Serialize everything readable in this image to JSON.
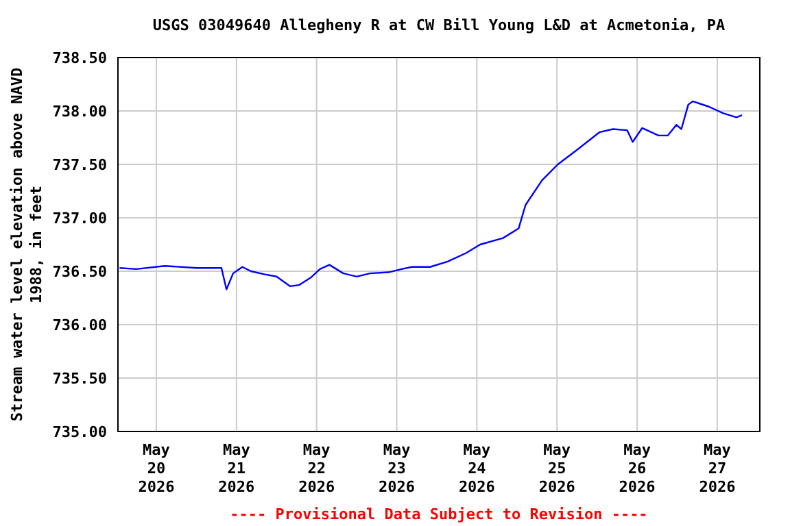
{
  "chart_data": {
    "type": "line",
    "title": "USGS 03049640 Allegheny R at CW Bill Young L&D  at Acmetonia, PA",
    "ylabel": "Stream water level elevation above NAVD 1988, in feet",
    "annotations": [
      "---- Provisional Data Subject to Revision ----"
    ],
    "x": [
      "2026-05-19T13:00",
      "2026-05-19T18:00",
      "2026-05-20T02:30",
      "2026-05-20T12:00",
      "2026-05-20T19:30",
      "2026-05-20T21:00",
      "2026-05-20T23:00",
      "2026-05-21T01:45",
      "2026-05-21T04:20",
      "2026-05-21T08:30",
      "2026-05-21T12:00",
      "2026-05-21T16:00",
      "2026-05-21T18:45",
      "2026-05-21T22:15",
      "2026-05-22T01:00",
      "2026-05-22T03:50",
      "2026-05-22T08:00",
      "2026-05-22T12:00",
      "2026-05-22T16:00",
      "2026-05-22T21:30",
      "2026-05-23T01:30",
      "2026-05-23T04:30",
      "2026-05-23T10:00",
      "2026-05-23T15:15",
      "2026-05-23T20:45",
      "2026-05-24T01:00",
      "2026-05-24T07:50",
      "2026-05-24T12:30",
      "2026-05-24T14:35",
      "2026-05-24T19:30",
      "2026-05-25T00:15",
      "2026-05-25T05:45",
      "2026-05-25T12:40",
      "2026-05-25T16:45",
      "2026-05-25T21:00",
      "2026-05-25T22:40",
      "2026-05-26T01:30",
      "2026-05-26T06:25",
      "2026-05-26T09:10",
      "2026-05-26T11:45",
      "2026-05-26T13:15",
      "2026-05-26T15:20",
      "2026-05-26T16:40",
      "2026-05-26T21:30",
      "2026-05-27T01:40",
      "2026-05-27T05:45",
      "2026-05-27T07:25"
    ],
    "series": [
      {
        "color": "#0000ff",
        "values": [
          736.53,
          736.52,
          736.55,
          736.53,
          736.53,
          736.33,
          736.48,
          736.54,
          736.5,
          736.47,
          736.45,
          736.36,
          736.37,
          736.44,
          736.52,
          736.56,
          736.48,
          736.45,
          736.48,
          736.49,
          736.52,
          736.54,
          736.54,
          736.59,
          736.67,
          736.75,
          736.81,
          736.9,
          737.12,
          737.35,
          737.5,
          737.63,
          737.8,
          737.83,
          737.82,
          737.71,
          737.84,
          737.77,
          737.77,
          737.87,
          737.83,
          738.06,
          738.09,
          738.04,
          737.98,
          737.94,
          737.96
        ]
      }
    ],
    "xlim": [
      "2026-05-19T12:30",
      "2026-05-27T12:45"
    ],
    "xticks": [
      {
        "value": "2026-05-20",
        "label": "May\n20\n2026"
      },
      {
        "value": "2026-05-21",
        "label": "May\n21\n2026"
      },
      {
        "value": "2026-05-22",
        "label": "May\n22\n2026"
      },
      {
        "value": "2026-05-23",
        "label": "May\n23\n2026"
      },
      {
        "value": "2026-05-24",
        "label": "May\n24\n2026"
      },
      {
        "value": "2026-05-25",
        "label": "May\n25\n2026"
      },
      {
        "value": "2026-05-26",
        "label": "May\n26\n2026"
      },
      {
        "value": "2026-05-27",
        "label": "May\n27\n2026"
      }
    ],
    "ylim": [
      735,
      738.5
    ],
    "yticks": [
      {
        "value": 735,
        "label": "735.00"
      },
      {
        "value": 735.5,
        "label": "735.50"
      },
      {
        "value": 736,
        "label": "736.00"
      },
      {
        "value": 736.5,
        "label": "736.50"
      },
      {
        "value": 737,
        "label": "737.00"
      },
      {
        "value": 737.5,
        "label": "737.50"
      },
      {
        "value": 738,
        "label": "738.00"
      },
      {
        "value": 738.5,
        "label": "738.50"
      }
    ],
    "grid": true,
    "marker": "none",
    "line_style": "solid"
  }
}
